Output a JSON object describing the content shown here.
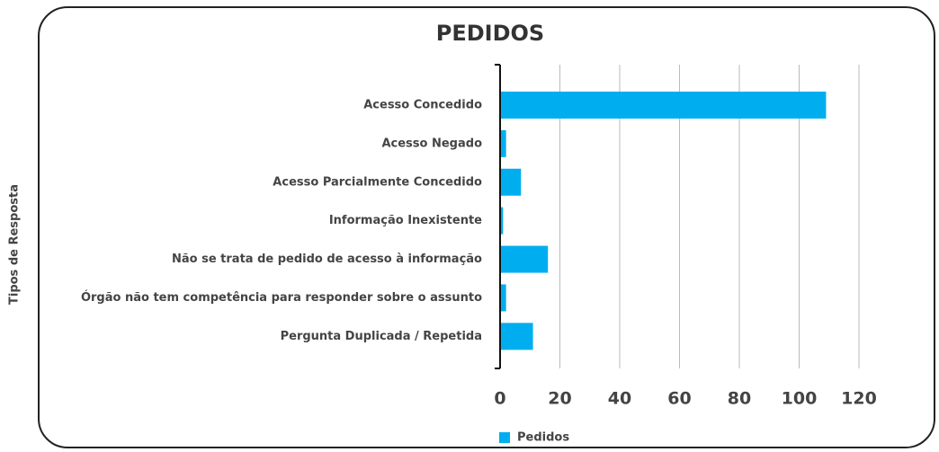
{
  "chart_data": {
    "type": "bar",
    "orientation": "horizontal",
    "title": "PEDIDOS",
    "y_label": "Tipos de Resposta",
    "categories": [
      "Acesso Concedido",
      "Acesso Negado",
      "Acesso Parcialmente Concedido",
      "Informação Inexistente",
      "Não se trata de pedido de acesso à informação",
      "Órgão não tem competência para responder sobre o assunto",
      "Pergunta  Duplicada / Repetida"
    ],
    "series": [
      {
        "name": "Pedidos",
        "color": "#00aeef",
        "values": [
          109,
          2,
          7,
          1,
          16,
          2,
          11
        ]
      }
    ],
    "xlim": [
      0,
      120
    ],
    "xticks": [
      0,
      20,
      40,
      60,
      80,
      100,
      120
    ],
    "grid": true,
    "legend": "bottom"
  }
}
